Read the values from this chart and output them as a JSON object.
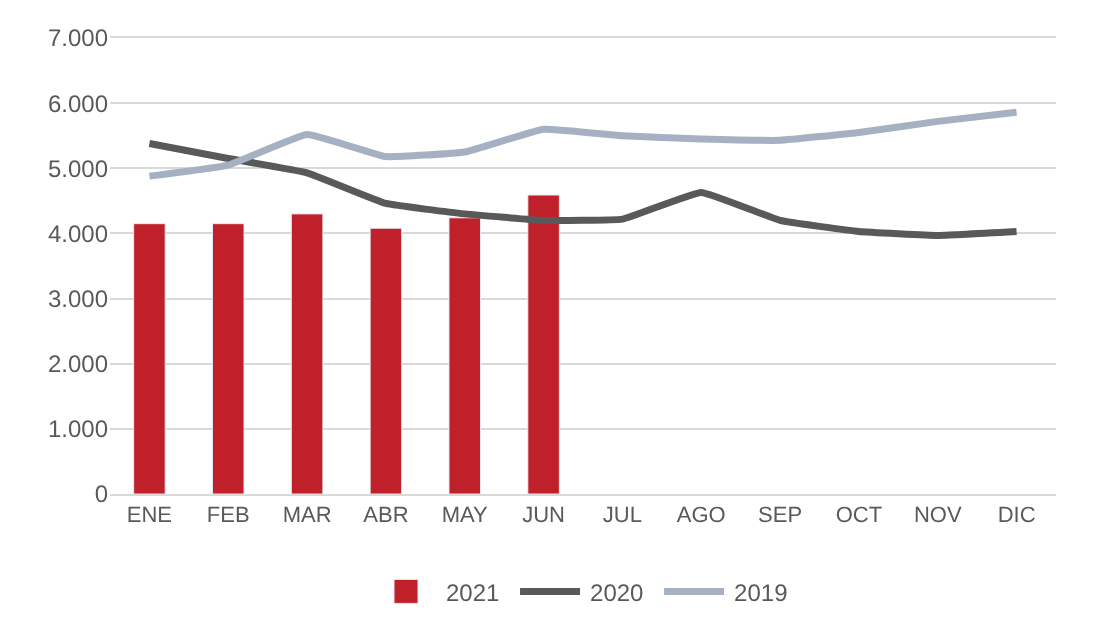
{
  "chart_data": {
    "type": "bar",
    "categories": [
      "ENE",
      "FEB",
      "MAR",
      "ABR",
      "MAY",
      "JUN",
      "JUL",
      "AGO",
      "SEP",
      "OCT",
      "NOV",
      "DIC"
    ],
    "series": [
      {
        "name": "2021",
        "color": "#c0202a",
        "values": [
          4150,
          4150,
          4300,
          4080,
          4240,
          4590,
          null,
          null,
          null,
          null,
          null,
          null
        ]
      },
      {
        "name": "2020",
        "type": "line",
        "color": "#595959",
        "values": [
          5380,
          5150,
          4930,
          4460,
          4300,
          4200,
          4220,
          4630,
          4200,
          4030,
          3970,
          4030
        ]
      },
      {
        "name": "2019",
        "type": "line",
        "color": "#a5b1c2",
        "values": [
          4880,
          5050,
          5520,
          5180,
          5250,
          5600,
          5500,
          5450,
          5430,
          5550,
          5720,
          5860
        ]
      }
    ],
    "ylim": [
      0,
      7000
    ],
    "yticks": [
      0,
      {
        "value": 1000,
        "label": "1.000"
      },
      {
        "value": 2000,
        "label": "2.000"
      },
      {
        "value": 3000,
        "label": "3.000"
      },
      {
        "value": 4000,
        "label": "4.000"
      },
      {
        "value": 5000,
        "label": "5.000"
      },
      {
        "value": 6000,
        "label": "6.000"
      },
      {
        "value": 7000,
        "label": "7.000"
      }
    ],
    "grid": "y",
    "legend": "bottom",
    "marker": "none"
  }
}
